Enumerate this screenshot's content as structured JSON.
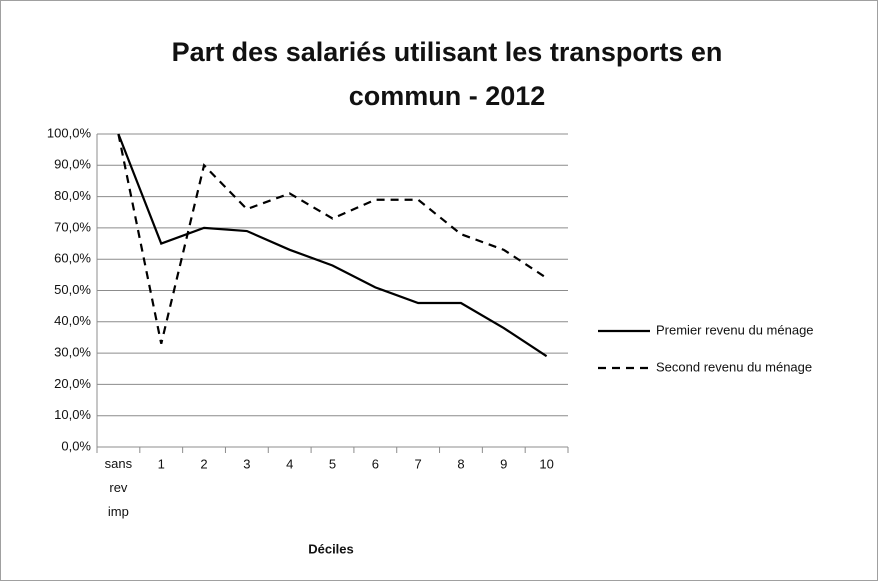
{
  "chart_data": {
    "type": "line",
    "title": "Part des salariés utilisant les transports en commun - 2012",
    "x_label": "Déciles",
    "categories": [
      "sans rev imp",
      "1",
      "2",
      "3",
      "4",
      "5",
      "6",
      "7",
      "8",
      "9",
      "10"
    ],
    "series": [
      {
        "name": "Premier revenu du ménage",
        "color": "#000000",
        "dash": "solid",
        "values": [
          100,
          65,
          70,
          69,
          63,
          58,
          51,
          46,
          46,
          38,
          29
        ]
      },
      {
        "name": "Second revenu du ménage",
        "color": "#000000",
        "dash": "dashed",
        "values": [
          100,
          33,
          90,
          76,
          81,
          73,
          79,
          79,
          68,
          63,
          54
        ]
      }
    ],
    "ylim": [
      0,
      100
    ],
    "yticks": [
      {
        "value": 0,
        "label": "0,0%"
      },
      {
        "value": 10,
        "label": "10,0%"
      },
      {
        "value": 20,
        "label": "20,0%"
      },
      {
        "value": 30,
        "label": "30,0%"
      },
      {
        "value": 40,
        "label": "40,0%"
      },
      {
        "value": 50,
        "label": "50,0%"
      },
      {
        "value": 60,
        "label": "60,0%"
      },
      {
        "value": 70,
        "label": "70,0%"
      },
      {
        "value": 80,
        "label": "80,0%"
      },
      {
        "value": 90,
        "label": "90,0%"
      },
      {
        "value": 100,
        "label": "100,0%"
      }
    ],
    "grid": true,
    "legend": "right"
  }
}
